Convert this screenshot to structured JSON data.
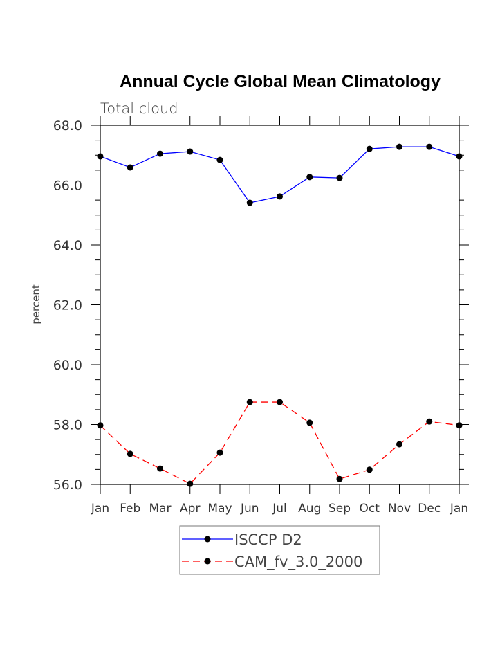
{
  "chart_data": {
    "type": "line",
    "title": "Annual Cycle Global Mean Climatology",
    "subtitle": "Total cloud",
    "xlabel": "",
    "ylabel": "percent",
    "categories": [
      "Jan",
      "Feb",
      "Mar",
      "Apr",
      "May",
      "Jun",
      "Jul",
      "Aug",
      "Sep",
      "Oct",
      "Nov",
      "Dec",
      "Jan"
    ],
    "ylim": [
      56.0,
      68.0
    ],
    "yticks": [
      "56.0",
      "58.0",
      "60.0",
      "62.0",
      "64.0",
      "66.0",
      "68.0"
    ],
    "grid": false,
    "legend_position": "bottom",
    "series": [
      {
        "name": "ISCCP D2",
        "color": "#0000ff",
        "dash": "solid",
        "values": [
          66.96,
          66.59,
          67.05,
          67.12,
          66.84,
          65.41,
          65.62,
          66.27,
          66.24,
          67.21,
          67.28,
          67.28,
          66.96
        ]
      },
      {
        "name": "CAM_fv_3.0_2000",
        "color": "#ff0000",
        "dash": "dashed",
        "values": [
          57.97,
          57.02,
          56.53,
          56.02,
          57.06,
          58.75,
          58.75,
          58.06,
          56.18,
          56.49,
          57.34,
          58.1,
          57.97
        ]
      }
    ]
  }
}
